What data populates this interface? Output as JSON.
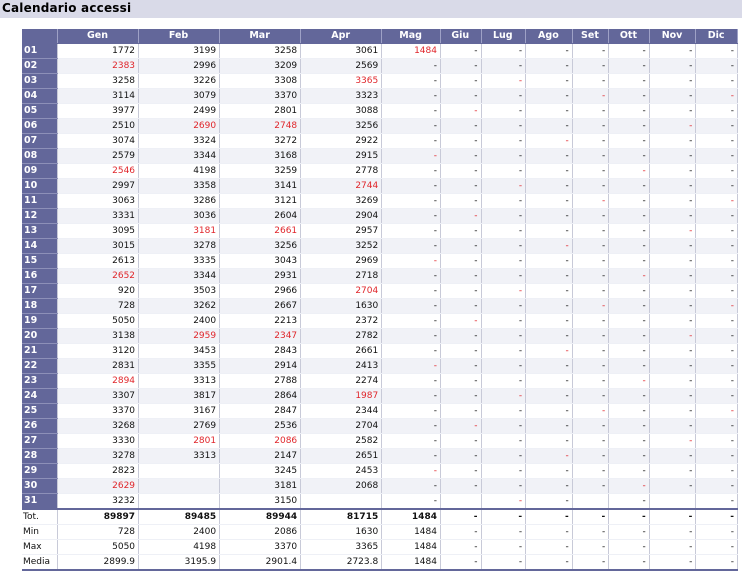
{
  "window": {
    "title": "Calendario accessi"
  },
  "months": [
    "Gen",
    "Feb",
    "Mar",
    "Apr",
    "Mag",
    "Giu",
    "Lug",
    "Ago",
    "Set",
    "Ott",
    "Nov",
    "Dic"
  ],
  "colors": {
    "header_bg": "#63679a",
    "header_text": "#ffffff",
    "highlight": "#e0262b",
    "page_bg": "#d9dae8"
  },
  "rows": [
    {
      "day": "01",
      "values": [
        "1772",
        "3199",
        "3258",
        "3061",
        "1484",
        "-",
        "-",
        "-",
        "-",
        "-",
        "-",
        "-"
      ],
      "red": [
        4
      ]
    },
    {
      "day": "02",
      "values": [
        "2383",
        "2996",
        "3209",
        "2569",
        "-",
        "-",
        "-",
        "-",
        "-",
        "-",
        "-",
        "-"
      ],
      "red": [
        0
      ]
    },
    {
      "day": "03",
      "values": [
        "3258",
        "3226",
        "3308",
        "3365",
        "-",
        "-",
        "-",
        "-",
        "-",
        "-",
        "-",
        "-"
      ],
      "red": [
        3,
        6
      ]
    },
    {
      "day": "04",
      "values": [
        "3114",
        "3079",
        "3370",
        "3323",
        "-",
        "-",
        "-",
        "-",
        "-",
        "-",
        "-",
        "-"
      ],
      "red": [
        8,
        11
      ]
    },
    {
      "day": "05",
      "values": [
        "3977",
        "2499",
        "2801",
        "3088",
        "-",
        "-",
        "-",
        "-",
        "-",
        "-",
        "-",
        "-"
      ],
      "red": [
        5
      ]
    },
    {
      "day": "06",
      "values": [
        "2510",
        "2690",
        "2748",
        "3256",
        "-",
        "-",
        "-",
        "-",
        "-",
        "-",
        "-",
        "-"
      ],
      "red": [
        1,
        2,
        10
      ]
    },
    {
      "day": "07",
      "values": [
        "3074",
        "3324",
        "3272",
        "2922",
        "-",
        "-",
        "-",
        "-",
        "-",
        "-",
        "-",
        "-"
      ],
      "red": [
        7
      ]
    },
    {
      "day": "08",
      "values": [
        "2579",
        "3344",
        "3168",
        "2915",
        "-",
        "-",
        "-",
        "-",
        "-",
        "-",
        "-",
        "-"
      ],
      "red": [
        4
      ]
    },
    {
      "day": "09",
      "values": [
        "2546",
        "4198",
        "3259",
        "2778",
        "-",
        "-",
        "-",
        "-",
        "-",
        "-",
        "-",
        "-"
      ],
      "red": [
        0,
        9
      ]
    },
    {
      "day": "10",
      "values": [
        "2997",
        "3358",
        "3141",
        "2744",
        "-",
        "-",
        "-",
        "-",
        "-",
        "-",
        "-",
        "-"
      ],
      "red": [
        3,
        6
      ]
    },
    {
      "day": "11",
      "values": [
        "3063",
        "3286",
        "3121",
        "3269",
        "-",
        "-",
        "-",
        "-",
        "-",
        "-",
        "-",
        "-"
      ],
      "red": [
        8,
        11
      ]
    },
    {
      "day": "12",
      "values": [
        "3331",
        "3036",
        "2604",
        "2904",
        "-",
        "-",
        "-",
        "-",
        "-",
        "-",
        "-",
        "-"
      ],
      "red": [
        5
      ]
    },
    {
      "day": "13",
      "values": [
        "3095",
        "3181",
        "2661",
        "2957",
        "-",
        "-",
        "-",
        "-",
        "-",
        "-",
        "-",
        "-"
      ],
      "red": [
        1,
        2,
        10
      ]
    },
    {
      "day": "14",
      "values": [
        "3015",
        "3278",
        "3256",
        "3252",
        "-",
        "-",
        "-",
        "-",
        "-",
        "-",
        "-",
        "-"
      ],
      "red": [
        7
      ]
    },
    {
      "day": "15",
      "values": [
        "2613",
        "3335",
        "3043",
        "2969",
        "-",
        "-",
        "-",
        "-",
        "-",
        "-",
        "-",
        "-"
      ],
      "red": [
        4
      ]
    },
    {
      "day": "16",
      "values": [
        "2652",
        "3344",
        "2931",
        "2718",
        "-",
        "-",
        "-",
        "-",
        "-",
        "-",
        "-",
        "-"
      ],
      "red": [
        0,
        9
      ]
    },
    {
      "day": "17",
      "values": [
        "920",
        "3503",
        "2966",
        "2704",
        "-",
        "-",
        "-",
        "-",
        "-",
        "-",
        "-",
        "-"
      ],
      "red": [
        3,
        6
      ]
    },
    {
      "day": "18",
      "values": [
        "728",
        "3262",
        "2667",
        "1630",
        "-",
        "-",
        "-",
        "-",
        "-",
        "-",
        "-",
        "-"
      ],
      "red": [
        8,
        11
      ]
    },
    {
      "day": "19",
      "values": [
        "5050",
        "2400",
        "2213",
        "2372",
        "-",
        "-",
        "-",
        "-",
        "-",
        "-",
        "-",
        "-"
      ],
      "red": [
        5
      ]
    },
    {
      "day": "20",
      "values": [
        "3138",
        "2959",
        "2347",
        "2782",
        "-",
        "-",
        "-",
        "-",
        "-",
        "-",
        "-",
        "-"
      ],
      "red": [
        1,
        2,
        10
      ]
    },
    {
      "day": "21",
      "values": [
        "3120",
        "3453",
        "2843",
        "2661",
        "-",
        "-",
        "-",
        "-",
        "-",
        "-",
        "-",
        "-"
      ],
      "red": [
        7
      ]
    },
    {
      "day": "22",
      "values": [
        "2831",
        "3355",
        "2914",
        "2413",
        "-",
        "-",
        "-",
        "-",
        "-",
        "-",
        "-",
        "-"
      ],
      "red": [
        4
      ]
    },
    {
      "day": "23",
      "values": [
        "2894",
        "3313",
        "2788",
        "2274",
        "-",
        "-",
        "-",
        "-",
        "-",
        "-",
        "-",
        "-"
      ],
      "red": [
        0,
        9
      ]
    },
    {
      "day": "24",
      "values": [
        "3307",
        "3817",
        "2864",
        "1987",
        "-",
        "-",
        "-",
        "-",
        "-",
        "-",
        "-",
        "-"
      ],
      "red": [
        3,
        6
      ]
    },
    {
      "day": "25",
      "values": [
        "3370",
        "3167",
        "2847",
        "2344",
        "-",
        "-",
        "-",
        "-",
        "-",
        "-",
        "-",
        "-"
      ],
      "red": [
        8,
        11
      ]
    },
    {
      "day": "26",
      "values": [
        "3268",
        "2769",
        "2536",
        "2704",
        "-",
        "-",
        "-",
        "-",
        "-",
        "-",
        "-",
        "-"
      ],
      "red": [
        5
      ]
    },
    {
      "day": "27",
      "values": [
        "3330",
        "2801",
        "2086",
        "2582",
        "-",
        "-",
        "-",
        "-",
        "-",
        "-",
        "-",
        "-"
      ],
      "red": [
        1,
        2,
        10
      ]
    },
    {
      "day": "28",
      "values": [
        "3278",
        "3313",
        "2147",
        "2651",
        "-",
        "-",
        "-",
        "-",
        "-",
        "-",
        "-",
        "-"
      ],
      "red": [
        7
      ]
    },
    {
      "day": "29",
      "values": [
        "2823",
        "",
        "3245",
        "2453",
        "-",
        "-",
        "-",
        "-",
        "-",
        "-",
        "-",
        "-"
      ],
      "red": [
        4
      ]
    },
    {
      "day": "30",
      "values": [
        "2629",
        "",
        "3181",
        "2068",
        "-",
        "-",
        "-",
        "-",
        "-",
        "-",
        "-",
        "-"
      ],
      "red": [
        0,
        9
      ]
    },
    {
      "day": "31",
      "values": [
        "3232",
        "",
        "3150",
        "",
        "-",
        "",
        "-",
        "-",
        "",
        "-",
        "",
        "-"
      ],
      "red": [
        6
      ]
    }
  ],
  "summary": [
    {
      "label": "Tot.",
      "values": [
        "89897",
        "89485",
        "89944",
        "81715",
        "1484",
        "-",
        "-",
        "-",
        "-",
        "-",
        "-",
        "-"
      ]
    },
    {
      "label": "Min",
      "values": [
        "728",
        "2400",
        "2086",
        "1630",
        "1484",
        "-",
        "-",
        "-",
        "-",
        "-",
        "-",
        "-"
      ]
    },
    {
      "label": "Max",
      "values": [
        "5050",
        "4198",
        "3370",
        "3365",
        "1484",
        "-",
        "-",
        "-",
        "-",
        "-",
        "-",
        "-"
      ]
    },
    {
      "label": "Media",
      "values": [
        "2899.9",
        "3195.9",
        "2901.4",
        "2723.8",
        "1484",
        "-",
        "-",
        "-",
        "-",
        "-",
        "-",
        "-"
      ]
    }
  ]
}
